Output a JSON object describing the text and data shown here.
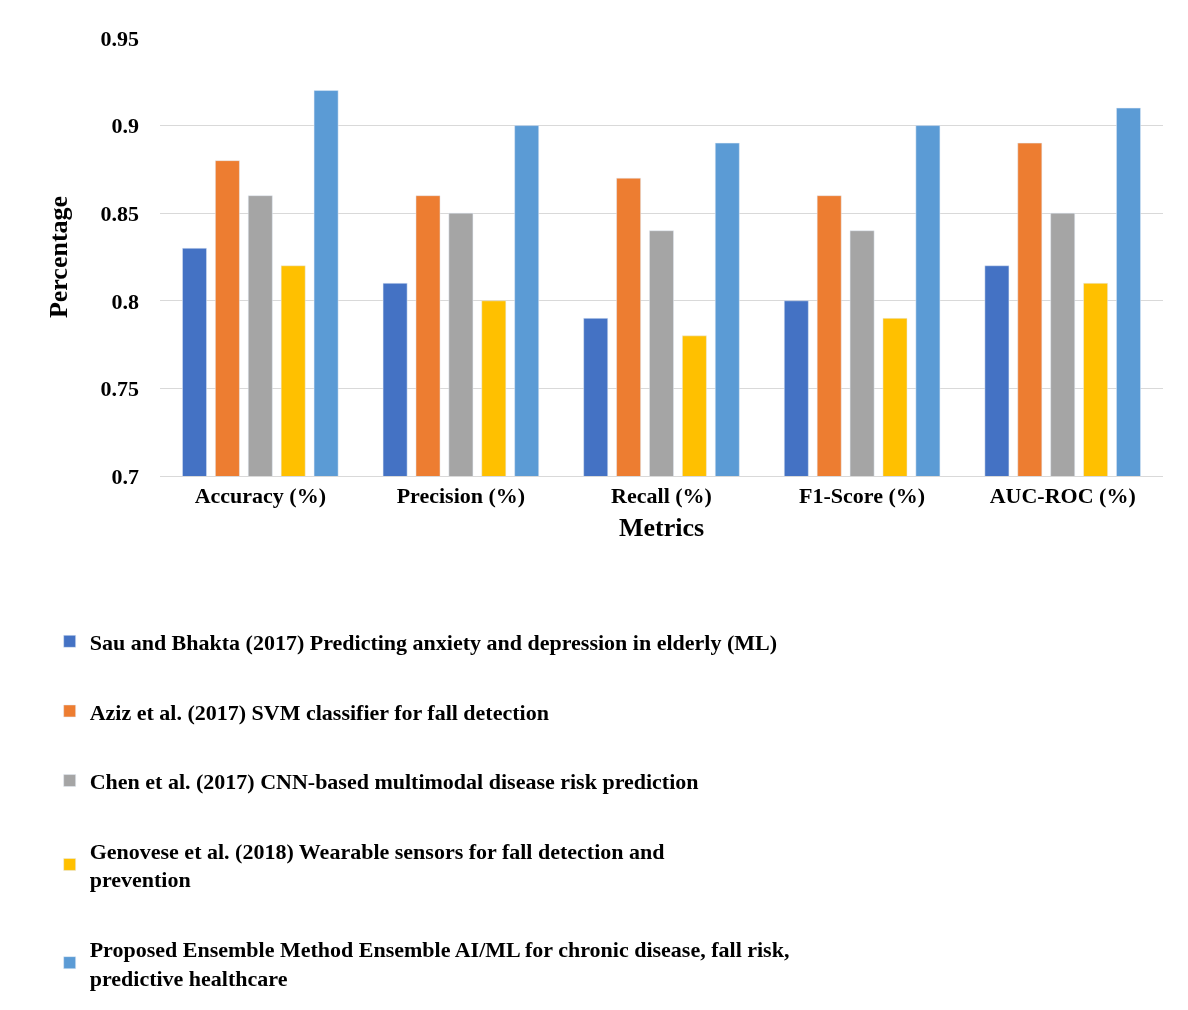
{
  "chart_data": {
    "type": "bar",
    "xlabel": "Metrics",
    "ylabel": "Percentage",
    "categories": [
      "Accuracy (%)",
      "Precision (%)",
      "Recall (%)",
      "F1-Score (%)",
      "AUC-ROC (%)"
    ],
    "series": [
      {
        "name": "Sau and Bhakta (2017) Predicting anxiety and depression in elderly (ML)",
        "color": "#4472c4",
        "values": [
          0.83,
          0.81,
          0.79,
          0.8,
          0.82
        ]
      },
      {
        "name": "Aziz et al. (2017) SVM classifier for fall detection",
        "color": "#ed7d31",
        "values": [
          0.88,
          0.86,
          0.87,
          0.86,
          0.89
        ]
      },
      {
        "name": "Chen et al. (2017) CNN-based multimodal disease risk prediction",
        "color": "#a5a5a5",
        "values": [
          0.86,
          0.85,
          0.84,
          0.84,
          0.85
        ]
      },
      {
        "name": "Genovese et al. (2018) Wearable sensors for fall detection and prevention",
        "color": "#ffc000",
        "values": [
          0.82,
          0.8,
          0.78,
          0.79,
          0.81
        ]
      },
      {
        "name": "Proposed Ensemble Method Ensemble AI/ML for chronic disease, fall risk, predictive healthcare",
        "color": "#5b9bd5",
        "values": [
          0.92,
          0.9,
          0.89,
          0.9,
          0.91
        ]
      }
    ],
    "ylim": [
      0.7,
      0.95
    ],
    "yticks": [
      0.7,
      0.75,
      0.8,
      0.85,
      0.9,
      0.95
    ],
    "grid": "y",
    "legend": "bottom"
  }
}
